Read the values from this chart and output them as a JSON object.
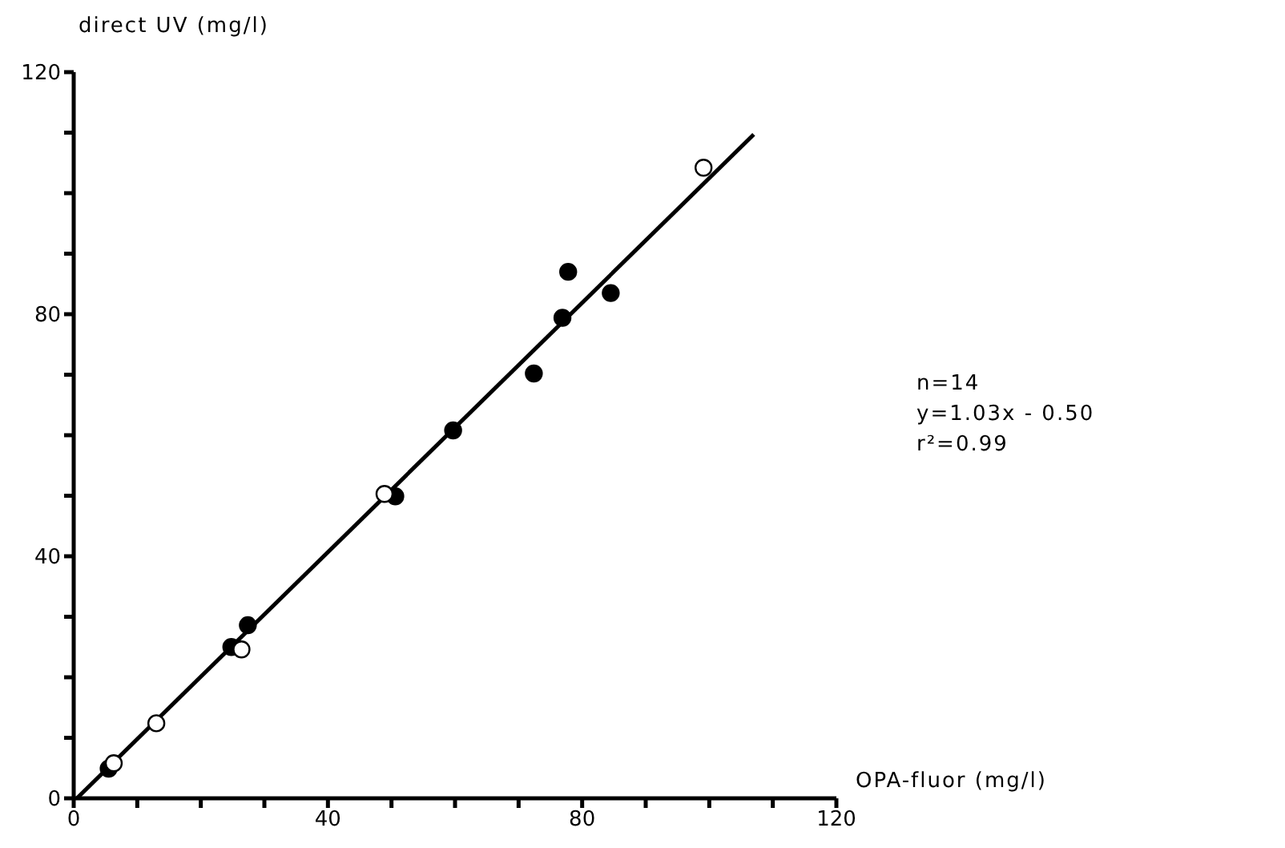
{
  "chart_data": {
    "type": "scatter",
    "xlabel": "OPA-fluor (mg/l)",
    "ylabel": "direct UV (mg/l)",
    "xlim": [
      0,
      120
    ],
    "ylim": [
      0,
      120
    ],
    "xticks": [
      0,
      {
        "value": 10,
        "label": null
      },
      {
        "value": 20,
        "label": null
      },
      {
        "value": 30,
        "label": null
      },
      40,
      {
        "value": 50,
        "label": null
      },
      {
        "value": 60,
        "label": null
      },
      {
        "value": 70,
        "label": null
      },
      80,
      {
        "value": 90,
        "label": null
      },
      {
        "value": 100,
        "label": null
      },
      {
        "value": 110,
        "label": null
      },
      120
    ],
    "yticks": [
      0,
      {
        "value": 10,
        "label": null
      },
      {
        "value": 20,
        "label": null
      },
      {
        "value": 30,
        "label": null
      },
      40,
      {
        "value": 50,
        "label": null
      },
      {
        "value": 60,
        "label": null
      },
      {
        "value": 70,
        "label": null
      },
      80,
      {
        "value": 90,
        "label": null
      },
      {
        "value": 100,
        "label": null
      },
      {
        "value": 110,
        "label": null
      },
      120
    ],
    "grid": false,
    "legend": false,
    "marker": "circle",
    "annotations": [
      "n=14",
      "y=1.03x - 0.50",
      "r²=0.99"
    ],
    "series": [
      {
        "color": "#000000",
        "x": [
          5.5,
          24.8,
          27.4,
          50.6,
          59.7,
          72.4,
          76.9,
          77.8,
          84.5
        ],
        "values": [
          4.9,
          25.0,
          28.6,
          49.9,
          60.8,
          70.2,
          79.4,
          87.0,
          83.5
        ]
      },
      {
        "color": "#ffffff",
        "x": [
          6.3,
          13.0,
          26.4,
          48.9,
          99.1
        ],
        "values": [
          5.8,
          12.4,
          24.6,
          50.3,
          104.2
        ]
      },
      {
        "type": "line",
        "color": "#000000",
        "line_style": "solid",
        "marker": "none",
        "x": [
          0.5,
          107
        ],
        "values": [
          0,
          109.7
        ]
      }
    ]
  }
}
